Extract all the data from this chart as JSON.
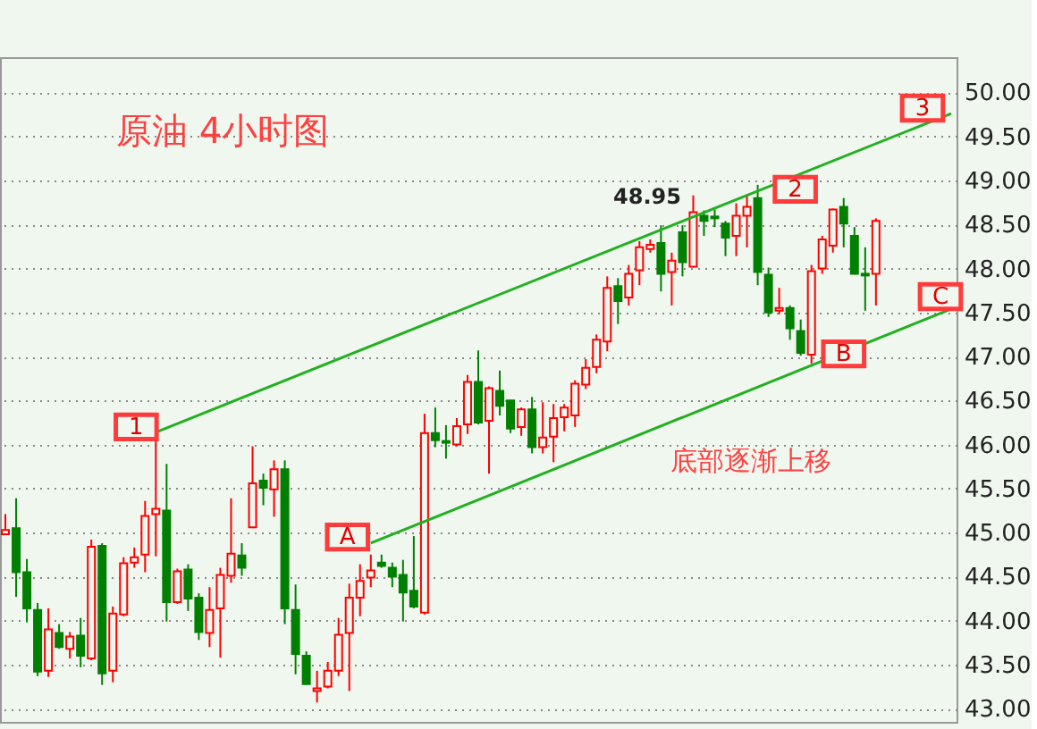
{
  "chart_data": {
    "type": "candlestick",
    "title": "原油  4小时图",
    "categories": [
      null,
      null,
      null,
      null,
      null,
      null,
      null,
      null,
      null,
      null,
      null,
      null,
      null,
      null,
      null,
      null,
      null,
      null,
      null,
      null,
      null,
      null,
      null,
      null,
      null,
      null,
      null,
      null,
      null,
      null,
      null,
      null,
      null,
      null,
      null,
      null,
      null,
      null,
      null,
      null,
      null,
      null,
      null,
      null,
      null,
      null,
      null,
      null,
      null,
      null,
      null,
      null,
      null,
      null,
      null,
      null,
      null,
      null,
      null,
      null,
      null,
      null,
      null,
      null,
      null,
      null,
      null,
      null,
      null,
      null,
      null,
      null,
      null,
      null,
      null,
      null,
      null,
      null,
      null,
      null,
      null,
      null,
      null,
      null,
      null,
      null,
      null,
      null,
      null
    ],
    "ohlc": [
      [
        44.98,
        45.21,
        44.98,
        45.03
      ],
      [
        45.05,
        45.39,
        44.27,
        44.55
      ],
      [
        44.55,
        44.7,
        43.98,
        44.14
      ],
      [
        44.12,
        44.2,
        43.37,
        43.42
      ],
      [
        43.43,
        44.14,
        43.36,
        43.9
      ],
      [
        43.86,
        43.96,
        43.68,
        43.7
      ],
      [
        43.68,
        43.87,
        43.57,
        43.82
      ],
      [
        43.83,
        44.03,
        43.47,
        43.6
      ],
      [
        43.57,
        44.92,
        43.55,
        44.84
      ],
      [
        44.85,
        44.88,
        43.27,
        43.4
      ],
      [
        43.43,
        44.16,
        43.3,
        44.08
      ],
      [
        44.07,
        44.72,
        44.05,
        44.65
      ],
      [
        44.66,
        44.83,
        44.6,
        44.72
      ],
      [
        44.75,
        45.36,
        44.55,
        45.19
      ],
      [
        45.21,
        46.11,
        44.73,
        45.27
      ],
      [
        45.25,
        45.78,
        43.99,
        44.21
      ],
      [
        44.21,
        44.59,
        44.19,
        44.56
      ],
      [
        44.58,
        44.64,
        44.11,
        44.25
      ],
      [
        44.26,
        44.31,
        43.78,
        43.87
      ],
      [
        43.86,
        44.38,
        43.7,
        44.12
      ],
      [
        44.14,
        44.6,
        43.58,
        44.52
      ],
      [
        44.51,
        45.39,
        44.43,
        44.76
      ],
      [
        44.74,
        44.88,
        44.51,
        44.6
      ],
      [
        45.06,
        45.98,
        45.05,
        45.56
      ],
      [
        45.59,
        45.67,
        45.31,
        45.51
      ],
      [
        45.49,
        45.82,
        45.18,
        45.72
      ],
      [
        45.72,
        45.82,
        43.96,
        44.14
      ],
      [
        44.12,
        44.41,
        43.39,
        43.62
      ],
      [
        43.6,
        43.65,
        43.27,
        43.28
      ],
      [
        43.2,
        43.43,
        43.07,
        43.23
      ],
      [
        43.25,
        43.53,
        43.23,
        43.43
      ],
      [
        43.43,
        44.03,
        43.37,
        43.84
      ],
      [
        43.86,
        44.42,
        43.2,
        44.26
      ],
      [
        44.26,
        44.64,
        44.05,
        44.45
      ],
      [
        44.49,
        44.75,
        44.38,
        44.57
      ],
      [
        44.66,
        44.75,
        44.6,
        44.62
      ],
      [
        44.6,
        44.66,
        44.38,
        44.5
      ],
      [
        44.52,
        44.69,
        43.99,
        44.32
      ],
      [
        44.34,
        44.96,
        44.14,
        44.16
      ],
      [
        44.09,
        46.35,
        44.07,
        46.13
      ],
      [
        46.13,
        46.42,
        45.97,
        46.05
      ],
      [
        46.04,
        46.22,
        45.84,
        46.02
      ],
      [
        46.0,
        46.3,
        45.98,
        46.21
      ],
      [
        46.23,
        46.79,
        46.12,
        46.71
      ],
      [
        46.71,
        47.07,
        46.23,
        46.25
      ],
      [
        46.27,
        46.66,
        45.67,
        46.64
      ],
      [
        46.61,
        46.84,
        46.33,
        46.44
      ],
      [
        46.5,
        46.5,
        46.13,
        46.18
      ],
      [
        46.2,
        46.42,
        46.1,
        46.4
      ],
      [
        46.4,
        46.54,
        45.9,
        45.97
      ],
      [
        45.97,
        46.48,
        45.9,
        46.08
      ],
      [
        46.09,
        46.46,
        45.8,
        46.3
      ],
      [
        46.31,
        46.46,
        46.15,
        46.42
      ],
      [
        46.33,
        46.73,
        46.2,
        46.69
      ],
      [
        46.68,
        46.97,
        46.63,
        46.87
      ],
      [
        46.88,
        47.25,
        46.81,
        47.19
      ],
      [
        47.17,
        47.91,
        47.06,
        47.78
      ],
      [
        47.8,
        47.89,
        47.37,
        47.63
      ],
      [
        47.67,
        48.04,
        47.58,
        47.94
      ],
      [
        47.98,
        48.31,
        47.81,
        48.24
      ],
      [
        48.22,
        48.33,
        48.18,
        48.27
      ],
      [
        48.29,
        48.49,
        47.74,
        47.94
      ],
      [
        47.96,
        48.18,
        47.58,
        48.09
      ],
      [
        48.41,
        48.49,
        47.91,
        48.07
      ],
      [
        48.02,
        48.83,
        48.01,
        48.64
      ],
      [
        48.6,
        48.66,
        48.37,
        48.54
      ],
      [
        48.59,
        48.67,
        48.47,
        48.57
      ],
      [
        48.51,
        48.54,
        48.14,
        48.35
      ],
      [
        48.37,
        48.74,
        48.14,
        48.6
      ],
      [
        48.6,
        48.83,
        48.24,
        48.7
      ],
      [
        48.8,
        48.95,
        47.81,
        47.96
      ],
      [
        47.93,
        48.01,
        47.45,
        47.5
      ],
      [
        47.52,
        47.78,
        47.48,
        47.55
      ],
      [
        47.55,
        47.58,
        47.19,
        47.32
      ],
      [
        47.29,
        47.42,
        47.01,
        47.04
      ],
      [
        47.02,
        48.04,
        46.92,
        47.97
      ],
      [
        48.0,
        48.37,
        47.94,
        48.33
      ],
      [
        48.26,
        48.68,
        48.18,
        48.67
      ],
      [
        48.7,
        48.8,
        48.24,
        48.51
      ],
      [
        48.37,
        48.47,
        47.93,
        47.94
      ],
      [
        47.94,
        48.24,
        47.52,
        47.92
      ],
      [
        47.94,
        48.57,
        47.58,
        48.54
      ],
      null,
      null,
      null,
      null,
      null,
      null,
      null
    ],
    "series": [
      {
        "type": "line",
        "color": "#22b022",
        "values": [
          null,
          null,
          null,
          null,
          null,
          null,
          null,
          null,
          null,
          null,
          null,
          null,
          null,
          null,
          46.14,
          null,
          null,
          null,
          null,
          null,
          null,
          null,
          null,
          null,
          null,
          null,
          null,
          null,
          null,
          null,
          null,
          null,
          null,
          null,
          null,
          null,
          null,
          null,
          null,
          null,
          null,
          null,
          null,
          null,
          null,
          null,
          null,
          null,
          null,
          null,
          null,
          null,
          null,
          null,
          null,
          null,
          null,
          null,
          null,
          null,
          null,
          null,
          null,
          null,
          null,
          null,
          null,
          null,
          null,
          null,
          null,
          null,
          null,
          null,
          null,
          null,
          null,
          null,
          null,
          null,
          null,
          null,
          null,
          null,
          null,
          null,
          null,
          null,
          49.76
        ]
      },
      {
        "type": "line",
        "color": "#22b022",
        "values": [
          null,
          null,
          null,
          null,
          null,
          null,
          null,
          null,
          null,
          null,
          null,
          null,
          null,
          null,
          null,
          null,
          null,
          null,
          null,
          null,
          null,
          null,
          null,
          null,
          null,
          null,
          null,
          null,
          null,
          null,
          null,
          null,
          null,
          null,
          44.88,
          null,
          null,
          null,
          null,
          null,
          null,
          null,
          null,
          null,
          null,
          null,
          null,
          null,
          null,
          null,
          null,
          null,
          null,
          null,
          null,
          null,
          null,
          null,
          null,
          null,
          null,
          null,
          null,
          null,
          null,
          null,
          null,
          null,
          null,
          null,
          null,
          null,
          null,
          null,
          null,
          null,
          null,
          null,
          null,
          null,
          null,
          null,
          null,
          null,
          null,
          null,
          null,
          null,
          47.54
        ]
      }
    ],
    "annotations": [
      {
        "text": "1",
        "y": 46.2
      },
      {
        "text": "A",
        "y": 44.95
      },
      {
        "text": "2",
        "y": 48.9
      },
      {
        "text": "B",
        "y": 47.03
      },
      {
        "text": "3",
        "y": 49.72
      },
      {
        "text": "C",
        "y": 47.68
      },
      "48.95",
      "底部逐渐上移"
    ],
    "ylim": [
      42.85,
      50.4
    ],
    "yticks": [
      {
        "value": 43,
        "label": "43.00"
      },
      {
        "value": 43.5,
        "label": "43.50"
      },
      {
        "value": 44,
        "label": "44.00"
      },
      {
        "value": 44.5,
        "label": "44.50"
      },
      {
        "value": 45,
        "label": "45.00"
      },
      {
        "value": 45.5,
        "label": "45.50"
      },
      {
        "value": 46,
        "label": "46.00"
      },
      {
        "value": 46.5,
        "label": "46.50"
      },
      {
        "value": 47,
        "label": "47.00"
      },
      {
        "value": 47.5,
        "label": "47.50"
      },
      {
        "value": 48,
        "label": "48.00"
      },
      {
        "value": 48.5,
        "label": "48.50"
      },
      {
        "value": 49,
        "label": "49.00"
      },
      {
        "value": 49.5,
        "label": "49.50"
      },
      {
        "value": 50,
        "label": "50.00"
      }
    ],
    "grid": "y",
    "tick_labels": "y"
  }
}
